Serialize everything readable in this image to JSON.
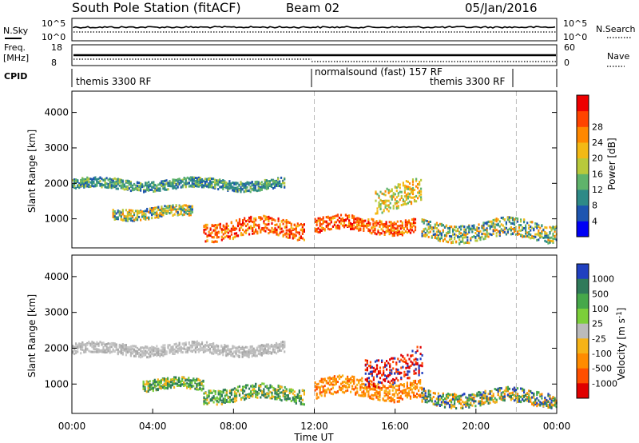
{
  "header": {
    "station": "South Pole Station (fitACF)",
    "beam": "Beam 02",
    "date": "05/Jan/2016"
  },
  "small_panels": {
    "nsky": {
      "left_label": "N.Sky",
      "right_label": "N.Search",
      "left_ticks": [
        "10^5",
        "10^0"
      ],
      "right_ticks": [
        "10^5",
        "10^0"
      ]
    },
    "freq": {
      "left_label_line1": "Freq.",
      "left_label_line2": "[MHz]",
      "right_label": "Nave",
      "left_ticks": [
        "18",
        "8"
      ],
      "right_ticks": [
        "60",
        "0"
      ]
    },
    "cpid": {
      "label": "CPID",
      "segments": [
        {
          "text": "themis 3300 RF",
          "start_hour": 0
        },
        {
          "text": "normalsound (fast) 157 RF",
          "start_hour": 12
        },
        {
          "text": "themis 3300 RF",
          "start_hour": 17.5
        }
      ],
      "boundaries_hours": [
        12,
        22
      ]
    }
  },
  "chart_data": [
    {
      "type": "heatmap",
      "title": "Power",
      "ylabel": "Slant Range [km]",
      "xlabel": "",
      "xlim": [
        0,
        24
      ],
      "ylim": [
        180,
        4600
      ],
      "yticks": [
        1000,
        2000,
        3000,
        4000
      ],
      "colorbar": {
        "label": "Power [dB]",
        "range": [
          0,
          32
        ],
        "ticks": [
          "4",
          "8",
          "12",
          "16",
          "20",
          "24",
          "28"
        ],
        "colors": [
          "#0000f5",
          "#1d55b0",
          "#2e8a87",
          "#5fb36b",
          "#b8c93b",
          "#f3b915",
          "#ff8800",
          "#ff4400",
          "#ee0000"
        ]
      },
      "echo_bands": [
        {
          "t_start": 0.0,
          "t_end": 10.5,
          "range_center": 2000,
          "range_width": 280,
          "level": "low"
        },
        {
          "t_start": 2.0,
          "t_end": 6.0,
          "range_center": 1200,
          "range_width": 300,
          "level": "mixed"
        },
        {
          "t_start": 6.5,
          "t_end": 11.5,
          "range_center": 750,
          "range_width": 500,
          "level": "high"
        },
        {
          "t_start": 12.0,
          "t_end": 17.0,
          "range_center": 850,
          "range_width": 400,
          "level": "high"
        },
        {
          "t_start": 15.0,
          "t_end": 17.3,
          "range_center": 1700,
          "range_width": 700,
          "level": "medium"
        },
        {
          "t_start": 17.3,
          "t_end": 24.0,
          "range_center": 700,
          "range_width": 500,
          "level": "mixed"
        }
      ],
      "boundaries_hours": [
        12,
        22
      ]
    },
    {
      "type": "heatmap",
      "title": "Velocity",
      "ylabel": "Slant Range [km]",
      "xlabel": "Time UT",
      "xlim": [
        0,
        24
      ],
      "ylim": [
        180,
        4600
      ],
      "yticks": [
        1000,
        2000,
        3000,
        4000
      ],
      "xticks": [
        "00:00",
        "04:00",
        "08:00",
        "12:00",
        "16:00",
        "20:00",
        "00:00"
      ],
      "colorbar": {
        "label": "Velocity [m s^-1]",
        "ticks": [
          "1000",
          "500",
          "100",
          "25",
          "-25",
          "-100",
          "-500",
          "-1000"
        ],
        "colors": [
          "#2040c0",
          "#2f7a5a",
          "#46a84a",
          "#7ccf3a",
          "#bbbbbb",
          "#f6b317",
          "#ff8b00",
          "#ff4f00",
          "#e00000"
        ]
      },
      "echo_bands": [
        {
          "t_start": 0.0,
          "t_end": 10.5,
          "range_center": 2000,
          "range_width": 300,
          "level": "ground"
        },
        {
          "t_start": 3.5,
          "t_end": 6.5,
          "range_center": 1000,
          "range_width": 300,
          "level": "positive"
        },
        {
          "t_start": 6.5,
          "t_end": 11.5,
          "range_center": 750,
          "range_width": 400,
          "level": "positive"
        },
        {
          "t_start": 12.0,
          "t_end": 17.3,
          "range_center": 900,
          "range_width": 500,
          "level": "negative"
        },
        {
          "t_start": 14.5,
          "t_end": 17.3,
          "range_center": 1500,
          "range_width": 800,
          "level": "strong-negative"
        },
        {
          "t_start": 17.3,
          "t_end": 24.0,
          "range_center": 650,
          "range_width": 400,
          "level": "mixed"
        }
      ],
      "boundaries_hours": [
        12,
        22
      ]
    }
  ]
}
